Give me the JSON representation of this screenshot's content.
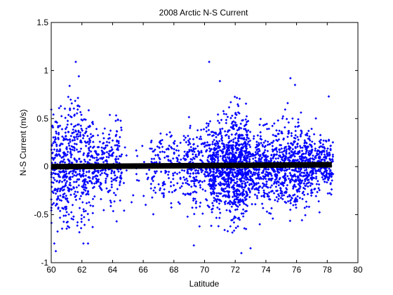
{
  "chart_data": {
    "type": "scatter",
    "title": "2008 Arctic N-S Current",
    "xlabel": "Latitude",
    "ylabel": "N-S Current (m/s)",
    "xlim": [
      60,
      80
    ],
    "ylim": [
      -1,
      1.5
    ],
    "xticks": [
      60,
      62,
      64,
      66,
      68,
      70,
      72,
      74,
      76,
      78,
      80
    ],
    "xtick_labels": [
      "60",
      "62",
      "64",
      "66",
      "68",
      "70",
      "72",
      "74",
      "76",
      "78",
      "80"
    ],
    "yticks": [
      -1,
      -0.5,
      0,
      0.5,
      1,
      1.5
    ],
    "ytick_labels": [
      "-1",
      "-0.5",
      "0",
      "0.5",
      "1",
      "1.5"
    ],
    "grid": false,
    "legend": "none",
    "colors": {
      "points": "#0000ff",
      "mean_line": "#000000",
      "axes": "#000000"
    },
    "series": [
      {
        "style": "points",
        "clusters": [
          {
            "x": [
              60.0,
              61.2
            ],
            "sd": 0.28,
            "count": 260
          },
          {
            "x": [
              61.2,
              62.8
            ],
            "sd": 0.3,
            "count": 300
          },
          {
            "x": [
              62.8,
              64.6
            ],
            "sd": 0.2,
            "count": 220
          },
          {
            "x": [
              64.6,
              66.5
            ],
            "sd": 0.22,
            "count": 25
          },
          {
            "x": [
              66.5,
              68.8
            ],
            "sd": 0.2,
            "count": 160
          },
          {
            "x": [
              68.8,
              70.4
            ],
            "sd": 0.22,
            "count": 220
          },
          {
            "x": [
              70.4,
              71.5
            ],
            "sd": 0.22,
            "count": 320
          },
          {
            "x": [
              71.5,
              72.8
            ],
            "sd": 0.26,
            "count": 600
          },
          {
            "x": [
              72.8,
              75.2
            ],
            "sd": 0.2,
            "count": 480
          },
          {
            "x": [
              75.2,
              77.0
            ],
            "sd": 0.2,
            "count": 420
          },
          {
            "x": [
              77.0,
              78.4
            ],
            "sd": 0.14,
            "count": 220
          }
        ],
        "outliers": [
          {
            "x": 61.6,
            "y": 1.09
          },
          {
            "x": 61.8,
            "y": 0.94
          },
          {
            "x": 61.2,
            "y": 0.84
          },
          {
            "x": 70.3,
            "y": 1.09
          },
          {
            "x": 71.0,
            "y": 0.89
          },
          {
            "x": 75.6,
            "y": 0.92
          },
          {
            "x": 75.9,
            "y": 0.85
          },
          {
            "x": 78.1,
            "y": 0.73
          },
          {
            "x": 60.3,
            "y": -0.88
          },
          {
            "x": 60.2,
            "y": -0.8
          },
          {
            "x": 62.1,
            "y": -0.8
          },
          {
            "x": 62.4,
            "y": -0.8
          },
          {
            "x": 69.3,
            "y": -0.82
          },
          {
            "x": 72.4,
            "y": -0.9
          },
          {
            "x": 73.0,
            "y": -0.85
          },
          {
            "x": 73.6,
            "y": -0.6
          }
        ]
      },
      {
        "style": "line",
        "x": [
          60.0,
          78.3
        ],
        "y": [
          0.0,
          0.02
        ]
      }
    ]
  }
}
